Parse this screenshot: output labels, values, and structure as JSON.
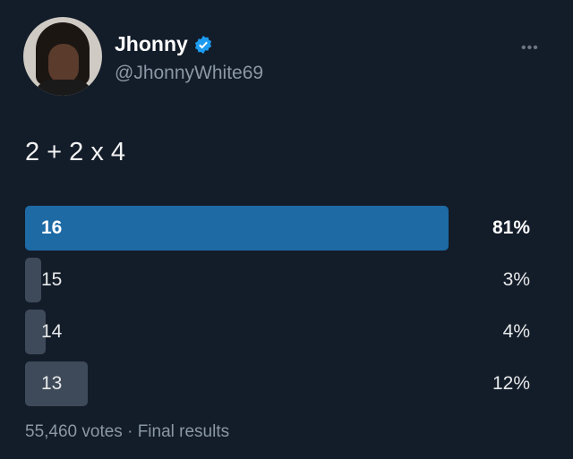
{
  "author": {
    "name": "Jhonny",
    "handle": "@JhonnyWhite69",
    "verified": true,
    "verified_icon": "verified-badge-icon"
  },
  "more_icon": "more-horizontal-icon",
  "tweet_text": "2 + 2 x 4",
  "colors": {
    "background": "#131c29",
    "winner_bar": "#1d6aa5",
    "bar": "#3e4a59",
    "verified": "#1d9bf0"
  },
  "poll": {
    "options": [
      {
        "label": "16",
        "percent": 81,
        "display": "81%",
        "winner": true
      },
      {
        "label": "15",
        "percent": 3,
        "display": "3%",
        "winner": false
      },
      {
        "label": "14",
        "percent": 4,
        "display": "4%",
        "winner": false
      },
      {
        "label": "13",
        "percent": 12,
        "display": "12%",
        "winner": false
      }
    ],
    "footer": "55,460 votes · Final results"
  }
}
